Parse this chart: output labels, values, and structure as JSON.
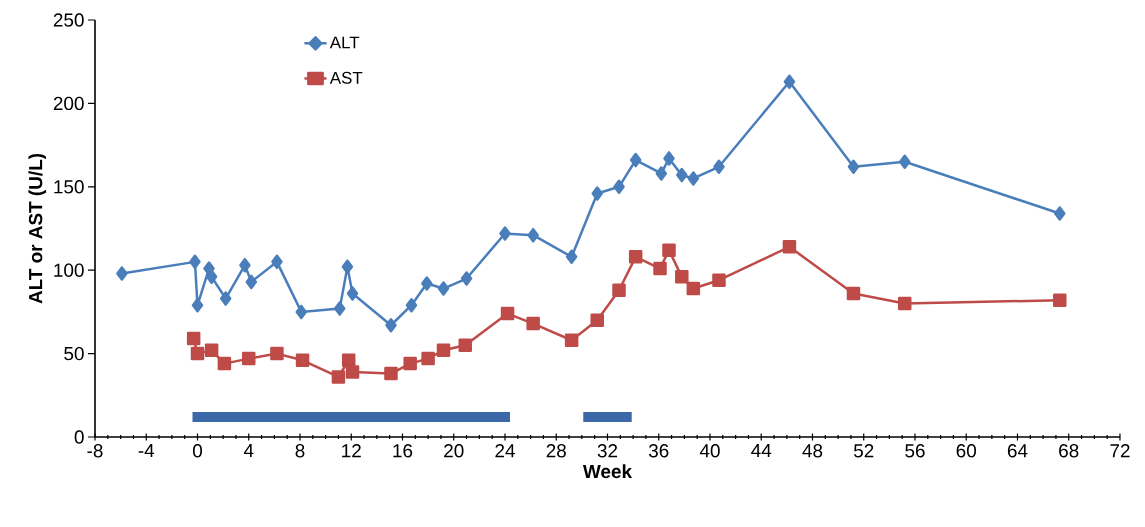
{
  "chart_data": {
    "type": "line",
    "xlabel": "Week",
    "ylabel": "ALT or AST (U/L)",
    "xlim": [
      -8,
      72
    ],
    "ylim": [
      0,
      250
    ],
    "xticks": [
      -8,
      -4,
      0,
      4,
      8,
      12,
      16,
      20,
      24,
      28,
      32,
      36,
      40,
      44,
      48,
      52,
      56,
      60,
      64,
      68,
      72
    ],
    "yticks": [
      0,
      50,
      100,
      150,
      200,
      250
    ],
    "grid": false,
    "legend": "top left",
    "line_style": "solid",
    "series": [
      {
        "name": "ALT",
        "color": "#4a7ebb",
        "marker": "diamond",
        "x": [
          -5.9,
          -0.2,
          0,
          0.9,
          1.1,
          2.2,
          3.7,
          4.2,
          6.2,
          8.1,
          11.1,
          11.7,
          12.1,
          15.1,
          16.7,
          17.9,
          19.2,
          21.0,
          24.0,
          26.2,
          29.2,
          31.2,
          32.9,
          34.2,
          36.2,
          36.8,
          37.8,
          38.7,
          40.7,
          46.2,
          51.2,
          55.2,
          67.3
        ],
        "values": [
          98,
          105,
          79,
          101,
          96,
          83,
          103,
          93,
          105,
          75,
          77,
          102,
          86,
          67,
          79,
          92,
          89,
          95,
          122,
          121,
          108,
          146,
          150,
          166,
          158,
          167,
          157,
          155,
          162,
          213,
          162,
          165,
          134
        ]
      },
      {
        "name": "AST",
        "color": "#be4b48",
        "marker": "square",
        "x": [
          -0.3,
          0,
          1.1,
          2.1,
          4.0,
          6.2,
          8.2,
          11.0,
          11.8,
          12.1,
          15.1,
          16.6,
          18.0,
          19.2,
          20.9,
          24.2,
          26.2,
          29.2,
          31.2,
          32.9,
          34.2,
          36.1,
          36.8,
          37.8,
          38.7,
          40.7,
          46.2,
          51.2,
          55.2,
          67.3
        ],
        "values": [
          59,
          50,
          52,
          44,
          47,
          50,
          46,
          36,
          46,
          39,
          38,
          44,
          47,
          52,
          55,
          74,
          68,
          58,
          70,
          88,
          108,
          101,
          112,
          96,
          89,
          94,
          114,
          86,
          80,
          82
        ]
      },
      {
        "color": "#3b68a8",
        "marker": "none",
        "x": [
          0,
          24,
          27,
          30.5,
          33.5
        ],
        "values": [
          12,
          12,
          null,
          12,
          12
        ]
      }
    ]
  }
}
